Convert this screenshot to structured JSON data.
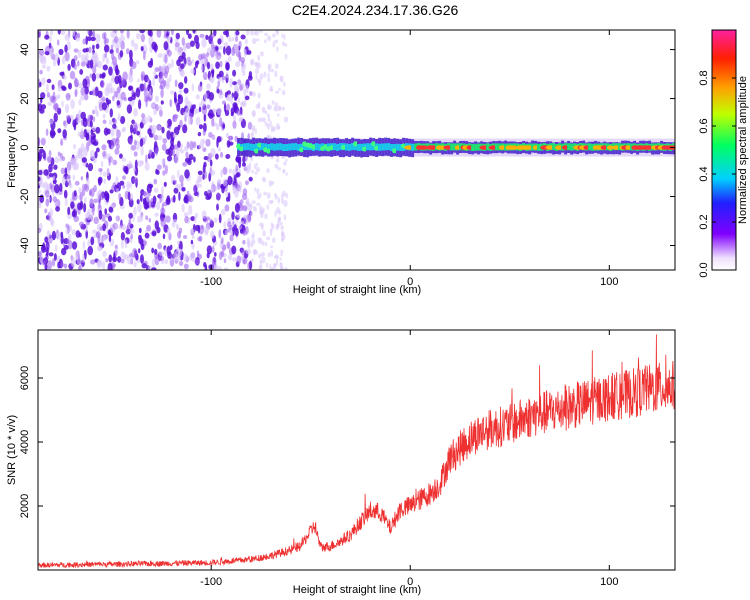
{
  "title": "C2E4.2024.234.17.36.G26",
  "colors": {
    "snr_line": "#ee3030",
    "noise_purple": "#6a14e0",
    "frame": "#000000"
  },
  "chart_data": [
    {
      "type": "heatmap",
      "title": "C2E4.2024.234.17.36.G26",
      "xlabel": "Height of straight line (km)",
      "ylabel": "Frequency (Hz)",
      "xlim": [
        -187,
        133
      ],
      "ylim": [
        -50,
        48
      ],
      "xticks": [
        -100,
        0,
        100
      ],
      "yticks": [
        -40,
        -20,
        0,
        20,
        40
      ],
      "colorbar": {
        "label": "Normalized spectral amplitude",
        "range": [
          0,
          1
        ],
        "ticks": [
          "0.0",
          "0.2",
          "0.4",
          "0.6",
          "0.8"
        ],
        "tick_values": [
          0.0,
          0.2,
          0.4,
          0.6,
          0.8
        ]
      },
      "regions": [
        {
          "name": "noise",
          "x_range": [
            -187,
            -80
          ],
          "freq_range": [
            -50,
            48
          ],
          "amplitude": 0.05
        },
        {
          "name": "sparse-noise",
          "x_range": [
            -80,
            -62
          ],
          "freq_range": [
            -50,
            48
          ],
          "amplitude": 0.02
        },
        {
          "name": "signal",
          "x_range": [
            -87,
            133
          ],
          "center_freq": 0,
          "amplitude_peak": 0.95
        }
      ]
    },
    {
      "type": "line",
      "xlabel": "Height of straight line (km)",
      "ylabel": "SNR (10 * v/v)",
      "xlim": [
        -187,
        133
      ],
      "ylim": [
        0,
        7500
      ],
      "xticks": [
        -100,
        0,
        100
      ],
      "yticks": [
        2000,
        4000,
        6000
      ],
      "series": [
        {
          "points": [
            [
              -187,
              150
            ],
            [
              -150,
              180
            ],
            [
              -100,
              230
            ],
            [
              -80,
              330
            ],
            [
              -70,
              450
            ],
            [
              -60,
              620
            ],
            [
              -55,
              750
            ],
            [
              -48,
              1400
            ],
            [
              -45,
              700
            ],
            [
              -40,
              750
            ],
            [
              -35,
              900
            ],
            [
              -30,
              1100
            ],
            [
              -25,
              1500
            ],
            [
              -20,
              1850
            ],
            [
              -15,
              1800
            ],
            [
              -10,
              1300
            ],
            [
              -5,
              1900
            ],
            [
              0,
              2000
            ],
            [
              5,
              2200
            ],
            [
              10,
              2400
            ],
            [
              15,
              2700
            ],
            [
              20,
              3500
            ],
            [
              25,
              3800
            ],
            [
              30,
              4100
            ],
            [
              35,
              4300
            ],
            [
              40,
              4400
            ],
            [
              50,
              4550
            ],
            [
              60,
              4800
            ],
            [
              70,
              4950
            ],
            [
              80,
              5100
            ],
            [
              90,
              5250
            ],
            [
              100,
              5400
            ],
            [
              110,
              5500
            ],
            [
              120,
              5650
            ],
            [
              133,
              5750
            ]
          ]
        }
      ]
    }
  ]
}
